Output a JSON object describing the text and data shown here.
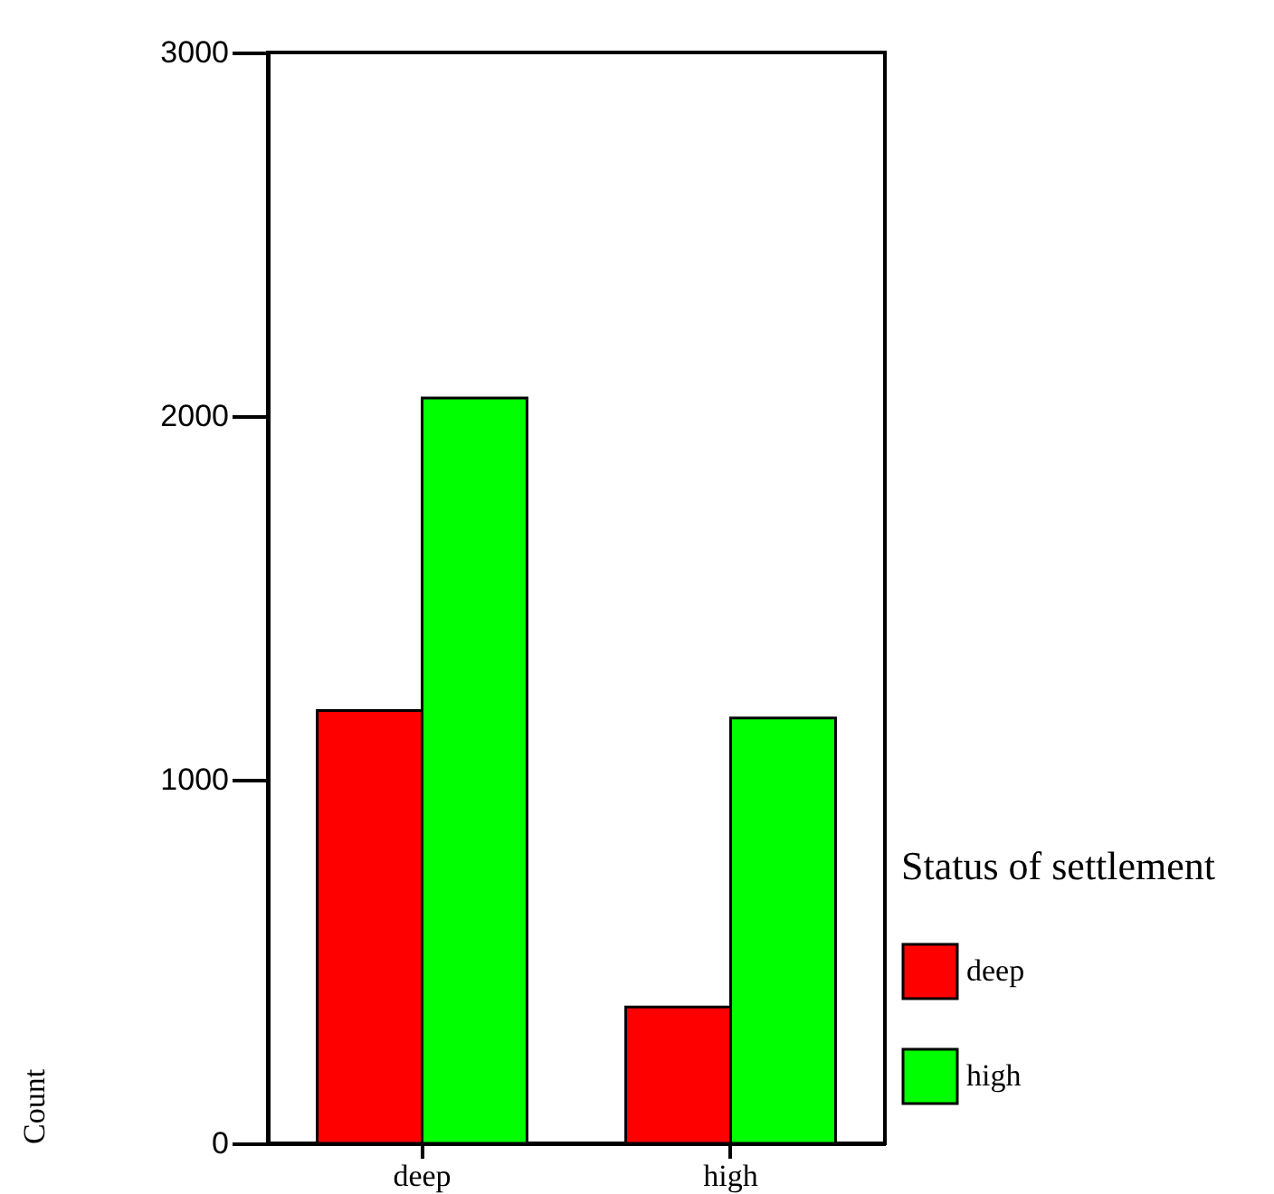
{
  "chart_data": {
    "type": "bar",
    "categories": [
      "deep",
      "high"
    ],
    "ylabel": "Count",
    "legend_title": "Status of settlement",
    "series": [
      {
        "name": "deep",
        "color": "#ff0000",
        "values": [
          1190,
          375
        ]
      },
      {
        "name": "high",
        "color": "#00ff00",
        "values": [
          2050,
          1170
        ]
      }
    ],
    "ylim": [
      0,
      3000
    ],
    "yticks": [
      0,
      1000,
      2000,
      3000
    ],
    "grid": false,
    "legend": "right"
  }
}
